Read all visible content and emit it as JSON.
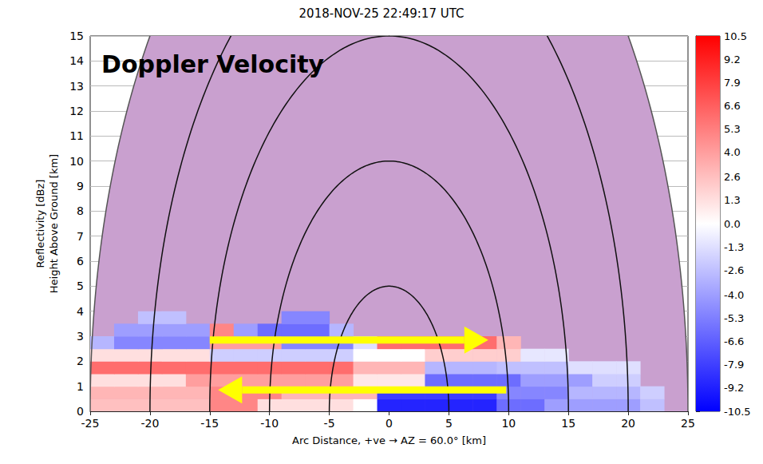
{
  "chart_data": {
    "type": "rhi",
    "title": "2018-NOV-25 22:49:17 UTC",
    "annotation": "Doppler Velocity",
    "xlabel": "Arc Distance, +ve → AZ = 60.0° [km]",
    "ylabel": [
      "Reflectivity [dBz]",
      "Height Above Ground [km]"
    ],
    "xlim": [
      -25,
      25
    ],
    "xticks": [
      -25,
      -20,
      -15,
      -10,
      -5,
      0,
      5,
      10,
      15,
      20,
      25
    ],
    "ylim": [
      0,
      15
    ],
    "yticks": [
      0,
      1,
      2,
      3,
      4,
      5,
      6,
      7,
      8,
      9,
      10,
      11,
      12,
      13,
      14,
      15
    ],
    "grid": true,
    "range_rings": [
      5,
      10,
      15,
      20,
      25
    ],
    "velocity": {
      "x_edges": [
        -25,
        -23,
        -21,
        -19,
        -17,
        -15,
        -13,
        -11,
        -9,
        -7,
        -5,
        -3,
        -1,
        1,
        3,
        5,
        7,
        9,
        11,
        13,
        15,
        17,
        19,
        21,
        23,
        25
      ],
      "y_edges": [
        0,
        0.5,
        1,
        1.5,
        2,
        2.5,
        3,
        3.5,
        4
      ],
      "values": [
        [
          2.6,
          2.6,
          2.6,
          2.6,
          2.6,
          5,
          5,
          1.3,
          1.3,
          1.3,
          1.3,
          0,
          -9,
          -9,
          -9,
          -9,
          -9,
          -6,
          -6,
          -4,
          -4,
          -4,
          -4,
          -2.6,
          null
        ],
        [
          3,
          3,
          3,
          3,
          3,
          5,
          5,
          5,
          3,
          3,
          3,
          3,
          -8,
          -8,
          -8,
          -8,
          -8,
          -5,
          -5,
          -5,
          -3,
          -3,
          -3,
          -2,
          null
        ],
        [
          1.3,
          1.3,
          1.3,
          1.3,
          4,
          4,
          4,
          4,
          4,
          4,
          4,
          1,
          1,
          1,
          -6,
          -6,
          -6,
          -6,
          -4,
          -4,
          -4,
          -2,
          -2,
          null,
          null
        ],
        [
          6,
          6,
          6,
          6,
          6,
          6,
          6,
          6,
          6,
          6,
          6,
          3,
          3,
          3,
          -3,
          -3,
          -3,
          -2.6,
          -2.6,
          -2.6,
          -1.3,
          -1.3,
          -1.3,
          null,
          null
        ],
        [
          1.3,
          1.3,
          1.3,
          1.3,
          1.3,
          -2,
          -2,
          -2,
          -2,
          -2,
          -2,
          0,
          0,
          0,
          2,
          2,
          2,
          2,
          -1,
          -1,
          null,
          null,
          null,
          null,
          null
        ],
        [
          -3,
          -5,
          -5,
          -5,
          -5,
          4,
          4,
          4,
          -5,
          -5,
          -5,
          -1.3,
          6,
          6,
          6,
          6,
          6,
          3,
          null,
          null,
          null,
          null,
          null,
          null,
          null
        ],
        [
          null,
          -4,
          -4,
          -4,
          -4,
          5,
          -4,
          -6,
          -6,
          -6,
          -3,
          null,
          null,
          null,
          null,
          null,
          null,
          null,
          null,
          null,
          null,
          null,
          null,
          null,
          null
        ],
        [
          null,
          null,
          -2.6,
          -2.6,
          null,
          null,
          null,
          null,
          -5,
          -5,
          null,
          null,
          null,
          null,
          null,
          null,
          null,
          null,
          null,
          null,
          null,
          null,
          null,
          null,
          null
        ]
      ]
    },
    "colorbar": {
      "range": [
        -10.5,
        10.5
      ],
      "ticks": [
        10.5,
        9.2,
        7.9,
        6.6,
        5.3,
        {
          "value": 4.0,
          "label": "4.0"
        },
        2.6,
        1.3,
        {
          "value": 0.0,
          "label": "0.0"
        },
        -1.3,
        -2.6,
        {
          "value": -4.0,
          "label": "-4.0"
        },
        -5.3,
        -6.6,
        -7.9,
        -9.2,
        -10.5
      ]
    }
  }
}
